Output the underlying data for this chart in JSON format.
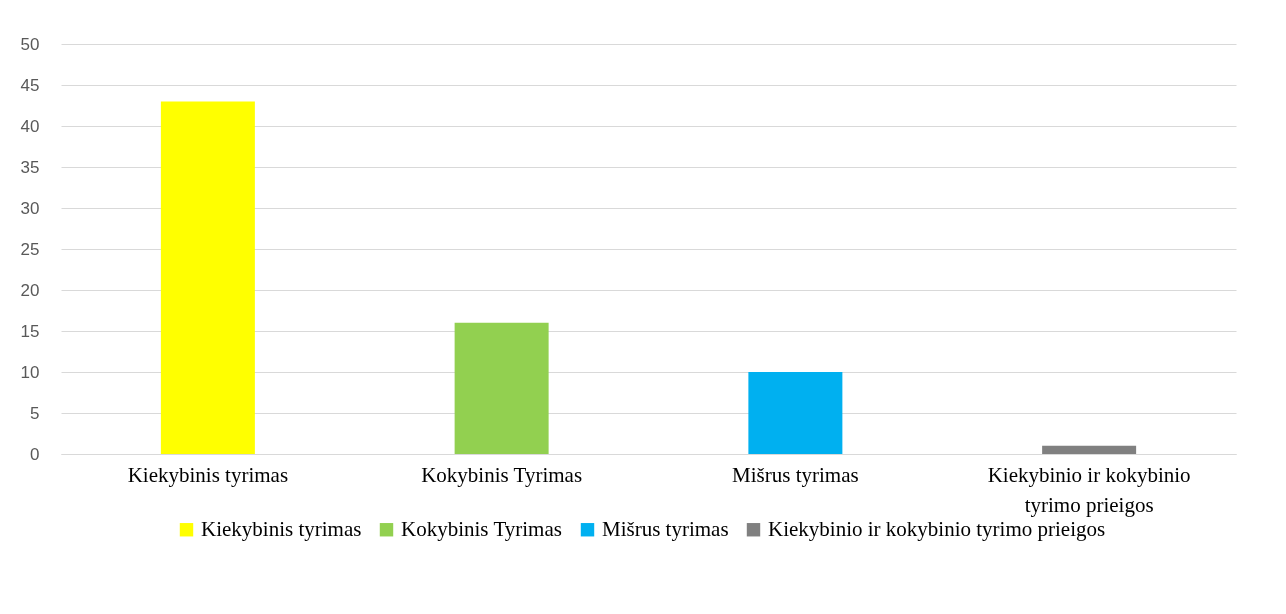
{
  "chart_data": {
    "type": "bar",
    "stacked": true,
    "categories": [
      "Kiekybinis tyrimas",
      "Kokybinis Tyrimas",
      "Mišrus tyrimas",
      "Kiekybinio ir kokybinio tyrimo prieigos"
    ],
    "series": [
      {
        "name": "Kiekybinis tyrimas",
        "color": "#ffff00",
        "values": [
          43,
          null,
          null,
          null
        ]
      },
      {
        "name": "Kokybinis Tyrimas",
        "color": "#92d050",
        "values": [
          null,
          16,
          null,
          null
        ]
      },
      {
        "name": "Mišrus tyrimas",
        "color": "#00b0f0",
        "values": [
          null,
          null,
          10,
          null
        ]
      },
      {
        "name": "Kiekybinio ir kokybinio tyrimo prieigos",
        "color": "#808080",
        "values": [
          null,
          null,
          null,
          1
        ]
      }
    ],
    "ylim": [
      0,
      50
    ],
    "yticks": [
      0,
      5,
      10,
      15,
      20,
      25,
      30,
      35,
      40,
      45,
      50
    ],
    "grid": "y",
    "legend": "bottom"
  }
}
